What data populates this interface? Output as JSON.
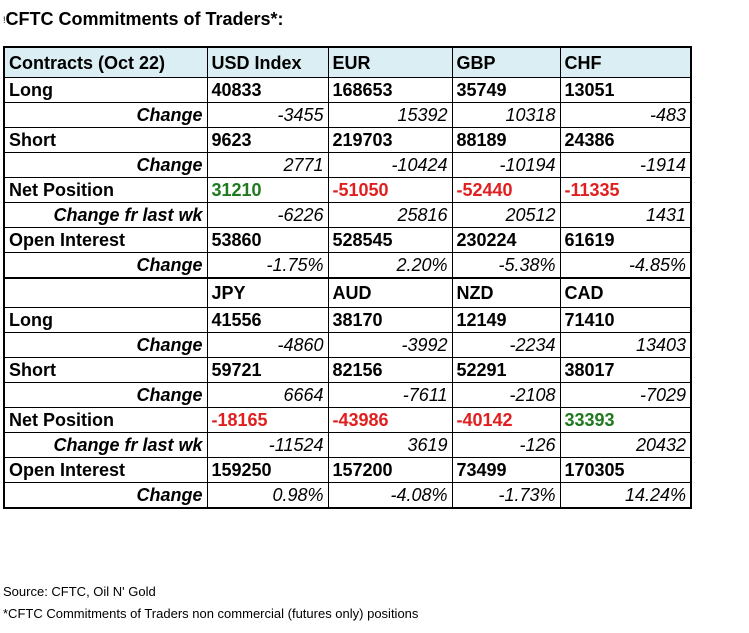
{
  "title": "CFTC Commitments of Traders*:",
  "title_marker": "!",
  "colors": {
    "header_bg": "#dbeef4",
    "positive": "#1f7a1f",
    "negative": "#e02020"
  },
  "labels": {
    "long": "Long",
    "short": "Short",
    "change": "Change",
    "net_position": "Net Position",
    "change_last_wk": "Change fr last wk",
    "open_interest": "Open Interest"
  },
  "block1": {
    "header": [
      "Contracts (Oct 22)",
      "USD Index",
      "EUR",
      "GBP",
      "CHF"
    ],
    "long": [
      "40833",
      "168653",
      "35749",
      "13051"
    ],
    "long_change": [
      "-3455",
      "15392",
      "10318",
      "-483"
    ],
    "short": [
      "9623",
      "219703",
      "88189",
      "24386"
    ],
    "short_change": [
      "2771",
      "-10424",
      "-10194",
      "-1914"
    ],
    "net": [
      "31210",
      "-51050",
      "-52440",
      "-11335"
    ],
    "net_change": [
      "-6226",
      "25816",
      "20512",
      "1431"
    ],
    "oi": [
      "53860",
      "528545",
      "230224",
      "61619"
    ],
    "oi_change": [
      "-1.75%",
      "2.20%",
      "-5.38%",
      "-4.85%"
    ]
  },
  "block2": {
    "header": [
      "",
      "JPY",
      "AUD",
      "NZD",
      "CAD"
    ],
    "long": [
      "41556",
      "38170",
      "12149",
      "71410"
    ],
    "long_change": [
      "-4860",
      "-3992",
      "-2234",
      "13403"
    ],
    "short": [
      "59721",
      "82156",
      "52291",
      "38017"
    ],
    "short_change": [
      "6664",
      "-7611",
      "-2108",
      "-7029"
    ],
    "net": [
      "-18165",
      "-43986",
      "-40142",
      "33393"
    ],
    "net_change": [
      "-11524",
      "3619",
      "-126",
      "20432"
    ],
    "oi": [
      "159250",
      "157200",
      "73499",
      "170305"
    ],
    "oi_change": [
      "0.98%",
      "-4.08%",
      "-1.73%",
      "14.24%"
    ]
  },
  "footer": {
    "source": "Source: CFTC, Oil N' Gold",
    "note": "*CFTC Commitments of Traders non commercial (futures only) positions"
  }
}
